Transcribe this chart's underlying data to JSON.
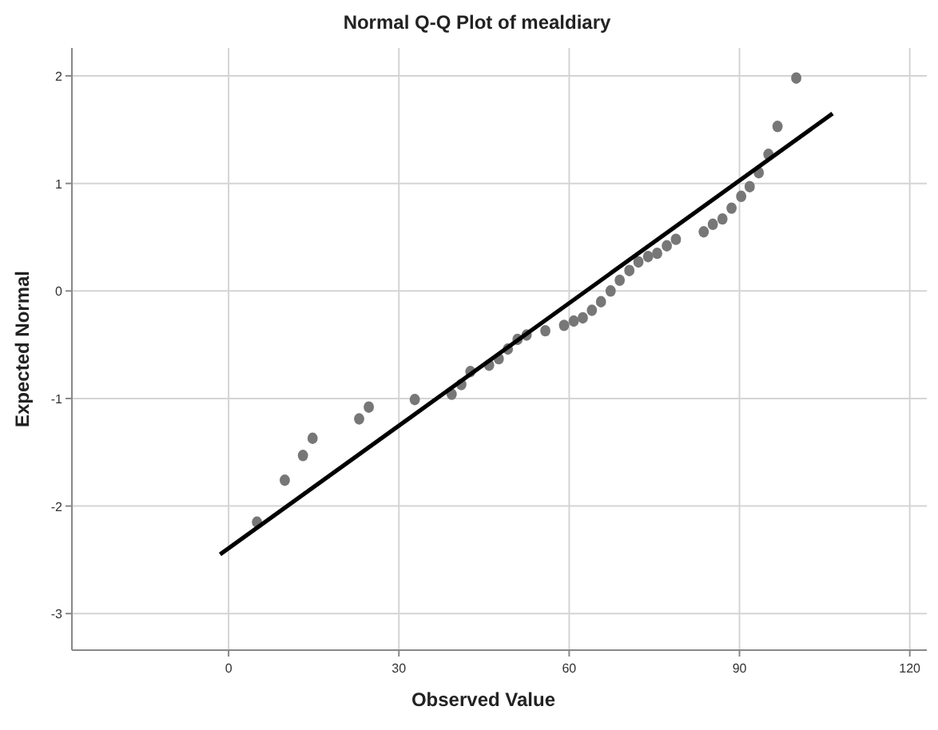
{
  "chart_data": {
    "type": "scatter",
    "title": "Normal Q-Q Plot of mealdiary",
    "xlabel": "Observed Value",
    "ylabel": "Expected Normal",
    "xlim": [
      -27.6,
      123
    ],
    "xticks": [
      0,
      30,
      60,
      90,
      120
    ],
    "ylim": [
      -3.34,
      2.26
    ],
    "yticks": [
      -3,
      -2,
      -1,
      0,
      1,
      2
    ],
    "grid": true,
    "marker": "circle",
    "series": [
      {
        "color": "#777777",
        "x": [
          5.0,
          9.9,
          13.1,
          14.8,
          23.0,
          24.7,
          32.8,
          39.3,
          41.0,
          42.6,
          45.9,
          47.6,
          49.2,
          50.9,
          52.5,
          55.8,
          59.1,
          60.8,
          62.4,
          64.0,
          65.6,
          67.3,
          68.9,
          70.6,
          72.2,
          73.9,
          75.5,
          77.2,
          78.8,
          83.7,
          85.3,
          87.0,
          88.6,
          90.3,
          91.8,
          93.4,
          95.1,
          96.7,
          100.0
        ],
        "values": [
          -2.15,
          -1.76,
          -1.53,
          -1.37,
          -1.19,
          -1.08,
          -1.01,
          -0.96,
          -0.87,
          -0.75,
          -0.69,
          -0.63,
          -0.54,
          -0.45,
          -0.41,
          -0.37,
          -0.32,
          -0.28,
          -0.25,
          -0.18,
          -0.1,
          0.0,
          0.1,
          0.19,
          0.27,
          0.32,
          0.35,
          0.42,
          0.48,
          0.55,
          0.62,
          0.67,
          0.77,
          0.88,
          0.97,
          1.1,
          1.27,
          1.53,
          1.98
        ]
      },
      {
        "type": "line",
        "marker": "none",
        "color": "#000000",
        "x": [
          -1.5,
          106.4
        ],
        "values": [
          -2.45,
          1.65
        ]
      }
    ]
  }
}
